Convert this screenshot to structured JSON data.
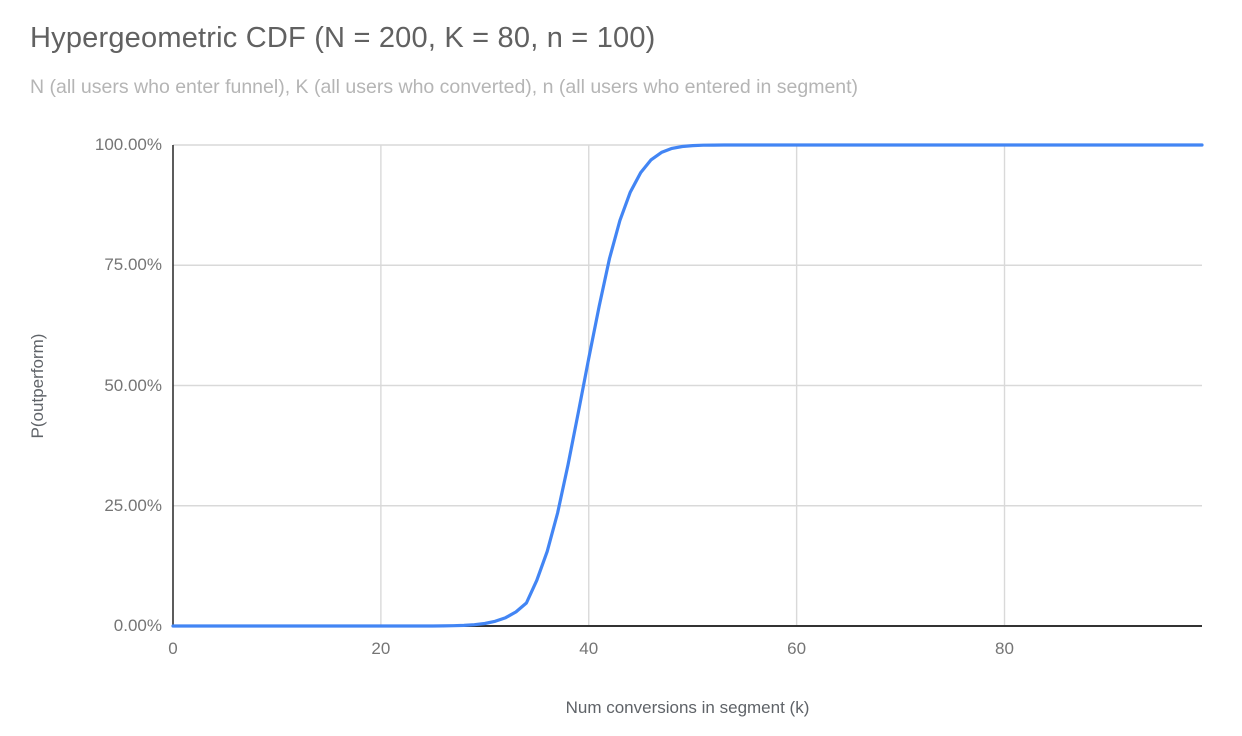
{
  "header": {
    "title": "Hypergeometric CDF (N = 200, K = 80, n = 100)",
    "subtitle": "N (all users who enter funnel), K (all users who converted), n (all users who entered in segment)"
  },
  "style": {
    "line_color": "#4285f4",
    "grid_color": "#d9d9d9",
    "axis_color": "#333333",
    "title_color": "#616161",
    "subtitle_color": "#b5b5b5",
    "tick_label_color": "#757575",
    "axis_title_color": "#5f6368",
    "background": "#ffffff"
  },
  "chart_data": {
    "type": "line",
    "title": "Hypergeometric CDF (N = 200, K = 80, n = 100)",
    "subtitle": "N (all users who enter funnel), K (all users who converted), n (all users who entered in segment)",
    "xlabel": "Num conversions in segment (k)",
    "ylabel": "P(outperform)",
    "xlim": [
      0,
      99
    ],
    "ylim": [
      0,
      1
    ],
    "grid": true,
    "legend": "none",
    "x_ticks": [
      {
        "value": 0,
        "label": "0"
      },
      {
        "value": 20,
        "label": "20"
      },
      {
        "value": 40,
        "label": "40"
      },
      {
        "value": 60,
        "label": "60"
      },
      {
        "value": 80,
        "label": "80"
      }
    ],
    "y_ticks": [
      {
        "value": 0.0,
        "label": "0.00%"
      },
      {
        "value": 0.25,
        "label": "25.00%"
      },
      {
        "value": 0.5,
        "label": "50.00%"
      },
      {
        "value": 0.75,
        "label": "75.00%"
      },
      {
        "value": 1.0,
        "label": "100.00%"
      }
    ],
    "series": [
      {
        "name": "P(outperform)",
        "color": "#4285f4",
        "points": [
          [
            0,
            0
          ],
          [
            5,
            0
          ],
          [
            10,
            0
          ],
          [
            15,
            0
          ],
          [
            20,
            0
          ],
          [
            24,
            0
          ],
          [
            25,
            0.0001
          ],
          [
            26,
            0.0003
          ],
          [
            27,
            0.0006
          ],
          [
            28,
            0.0013
          ],
          [
            29,
            0.0027
          ],
          [
            30,
            0.0052
          ],
          [
            31,
            0.0097
          ],
          [
            32,
            0.0172
          ],
          [
            33,
            0.0293
          ],
          [
            34,
            0.0478
          ],
          [
            35,
            0.095
          ],
          [
            36,
            0.155
          ],
          [
            37,
            0.235
          ],
          [
            38,
            0.335
          ],
          [
            39,
            0.445
          ],
          [
            40,
            0.557
          ],
          [
            41,
            0.665
          ],
          [
            42,
            0.764
          ],
          [
            43,
            0.843
          ],
          [
            44,
            0.902
          ],
          [
            45,
            0.9426
          ],
          [
            46,
            0.9692
          ],
          [
            47,
            0.9847
          ],
          [
            48,
            0.9929
          ],
          [
            49,
            0.9969
          ],
          [
            50,
            0.9987
          ],
          [
            51,
            0.9995
          ],
          [
            52,
            0.9998
          ],
          [
            53,
            0.9999
          ],
          [
            54,
            1
          ],
          [
            55,
            1
          ],
          [
            60,
            1
          ],
          [
            70,
            1
          ],
          [
            80,
            1
          ],
          [
            90,
            1
          ],
          [
            99,
            1
          ]
        ]
      }
    ]
  }
}
